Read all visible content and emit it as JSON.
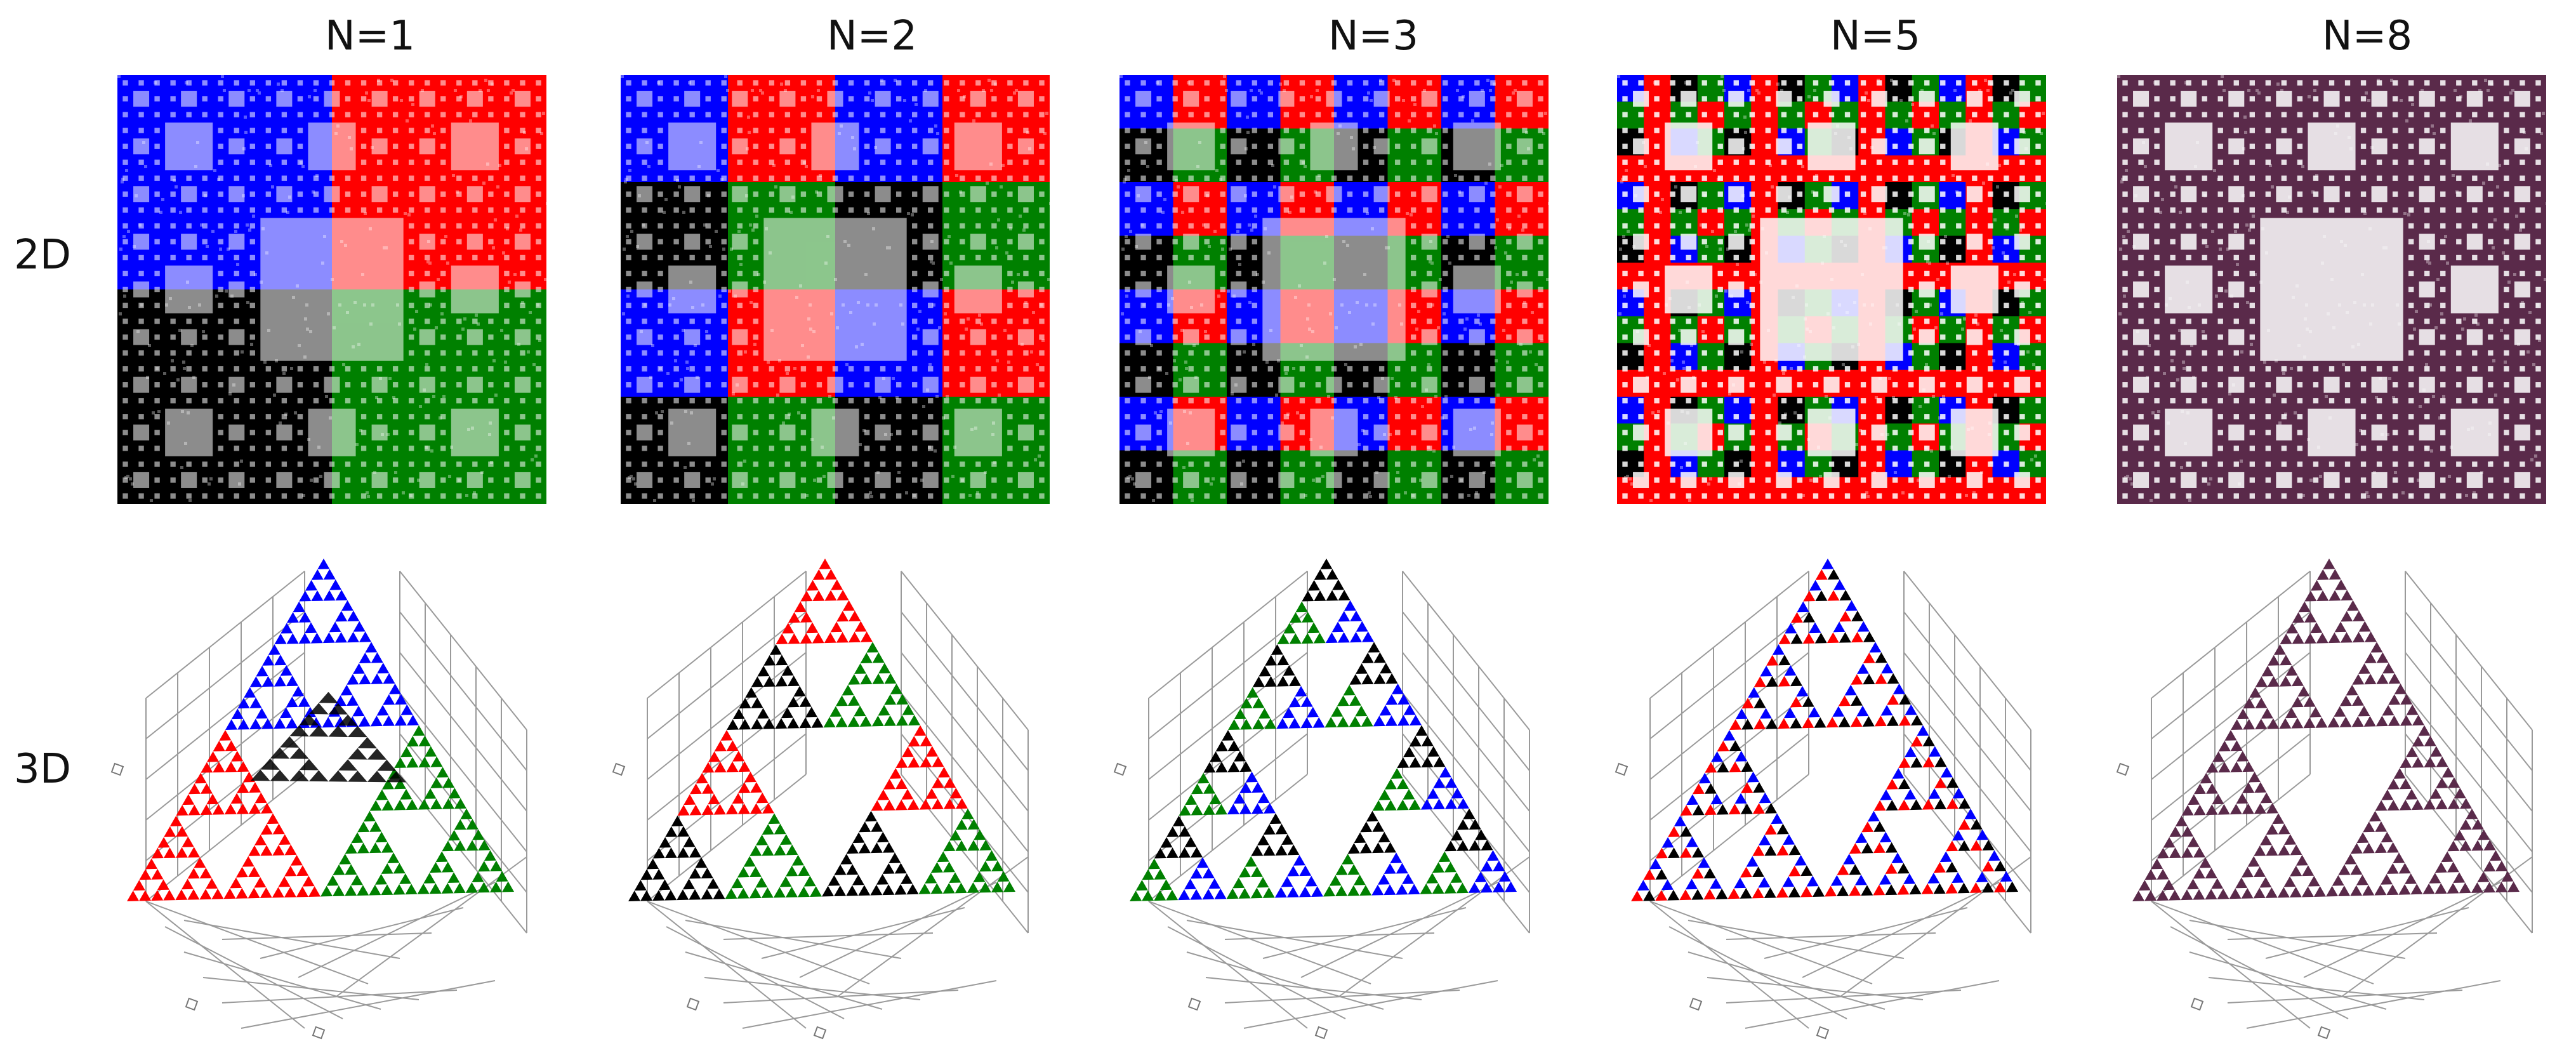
{
  "columns": [
    {
      "title": "N=1",
      "n": 1
    },
    {
      "title": "N=2",
      "n": 2
    },
    {
      "title": "N=3",
      "n": 3
    },
    {
      "title": "N=5",
      "n": 5
    },
    {
      "title": "N=8",
      "n": 8
    }
  ],
  "row_labels": {
    "top": "2D",
    "bottom": "3D"
  },
  "colors": {
    "blue": "#0000ff",
    "red": "#ff0000",
    "black": "#000000",
    "green": "#008000",
    "mixed_n8": "#5a2a4a",
    "grid": "#9a9a9a",
    "background": "#ffffff"
  }
}
